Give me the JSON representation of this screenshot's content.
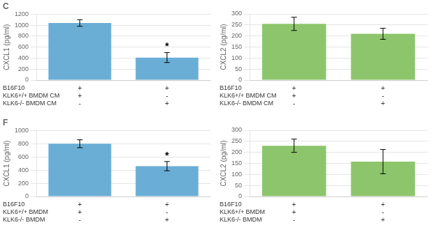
{
  "chart_data": [
    {
      "type": "bar",
      "title": "C",
      "ylabel": "CXCL1 (pg/ml)",
      "categories": [
        [
          "+",
          "+",
          "-"
        ],
        [
          "+",
          "-",
          "+"
        ]
      ],
      "row_labels": [
        "B16F10",
        "KLK6+/+ BMDM CM",
        "KLK6-/- BMDM CM"
      ],
      "values": [
        1040,
        410
      ],
      "errors": [
        60,
        90
      ],
      "color": "#6aaed6",
      "ylim": [
        0,
        1200
      ],
      "yticks": [
        0,
        200,
        400,
        600,
        800,
        1000,
        1200
      ],
      "grid": true,
      "annotations": [
        {
          "text": "*",
          "index": 1
        }
      ]
    },
    {
      "type": "bar",
      "ylabel": "CXCL2 (pg/ml)",
      "categories": [
        [
          "+",
          "+",
          "-"
        ],
        [
          "+",
          "-",
          "+"
        ]
      ],
      "row_labels": [
        "B16F10",
        "KLK6+/+ BMDM CM",
        "KLK6-/- BMDM CM"
      ],
      "values": [
        255,
        210
      ],
      "errors": [
        30,
        25
      ],
      "color": "#8dc56c",
      "ylim": [
        0,
        300
      ],
      "yticks": [
        0,
        50,
        100,
        150,
        200,
        250,
        300
      ],
      "grid": true
    },
    {
      "type": "bar",
      "title": "F",
      "ylabel": "CXCL1 (pg/ml)",
      "categories": [
        [
          "+",
          "+",
          "-"
        ],
        [
          "+",
          "-",
          "+"
        ]
      ],
      "row_labels": [
        "B16F10",
        "KLK6+/+ BMDM",
        "KLK6-/- BMDM"
      ],
      "values": [
        800,
        460
      ],
      "errors": [
        60,
        70
      ],
      "color": "#6aaed6",
      "ylim": [
        0,
        1000
      ],
      "yticks": [
        0,
        200,
        400,
        600,
        800,
        1000
      ],
      "grid": true,
      "annotations": [
        {
          "text": "*",
          "index": 1
        }
      ]
    },
    {
      "type": "bar",
      "ylabel": "CXCL2 (pg/ml)",
      "categories": [
        [
          "+",
          "+",
          "-"
        ],
        [
          "+",
          "-",
          "+"
        ]
      ],
      "row_labels": [
        "B16F10",
        "KLK6+/+ BMDM",
        "KLK6-/- BMDM"
      ],
      "values": [
        230,
        158
      ],
      "errors": [
        30,
        55
      ],
      "color": "#8dc56c",
      "ylim": [
        0,
        300
      ],
      "yticks": [
        0,
        50,
        100,
        150,
        200,
        250,
        300
      ],
      "grid": true
    }
  ]
}
